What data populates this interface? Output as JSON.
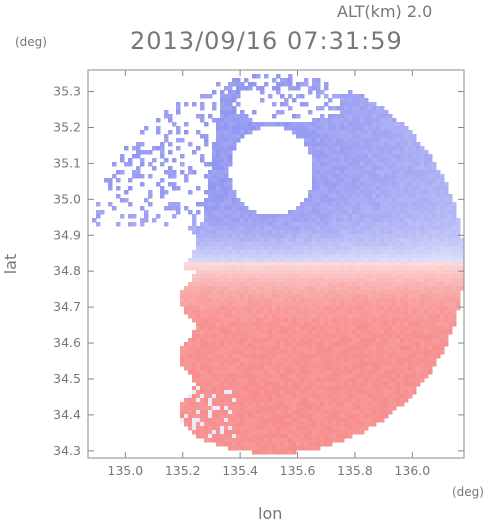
{
  "header": {
    "altitude_label": "ALT(km) 2.0",
    "timestamp": "2013/09/16 07:31:59"
  },
  "chart_data": {
    "type": "heatmap",
    "title": "2013/09/16 07:31:59",
    "subtitle": "ALT(km) 2.0",
    "xlabel": "lon",
    "ylabel": "lat",
    "x_unit": "(deg)",
    "y_unit": "(deg)",
    "xlim": [
      134.87,
      136.18
    ],
    "ylim": [
      34.28,
      35.36
    ],
    "x_ticks": [
      135.0,
      135.2,
      135.4,
      135.6,
      135.8,
      136.0
    ],
    "x_tick_labels": [
      "135.0",
      "135.2",
      "135.4",
      "135.6",
      "135.8",
      "136.0"
    ],
    "y_ticks": [
      34.3,
      34.4,
      34.5,
      34.6,
      34.7,
      34.8,
      34.9,
      35.0,
      35.1,
      35.2,
      35.3
    ],
    "y_tick_labels": [
      "34.3",
      "34.4",
      "34.5",
      "34.6",
      "34.7",
      "34.8",
      "34.9",
      "35.0",
      "35.1",
      "35.2",
      "35.3"
    ],
    "radar_center": {
      "lon": 135.52,
      "lat": 34.82
    },
    "range_deg_lon": 0.66,
    "grid": false,
    "colors": {
      "approaching": "#8f94f0",
      "receding": "#f78b8b",
      "near_zero": "#ffffff",
      "axis": "#888888",
      "text": "#777777"
    }
  }
}
